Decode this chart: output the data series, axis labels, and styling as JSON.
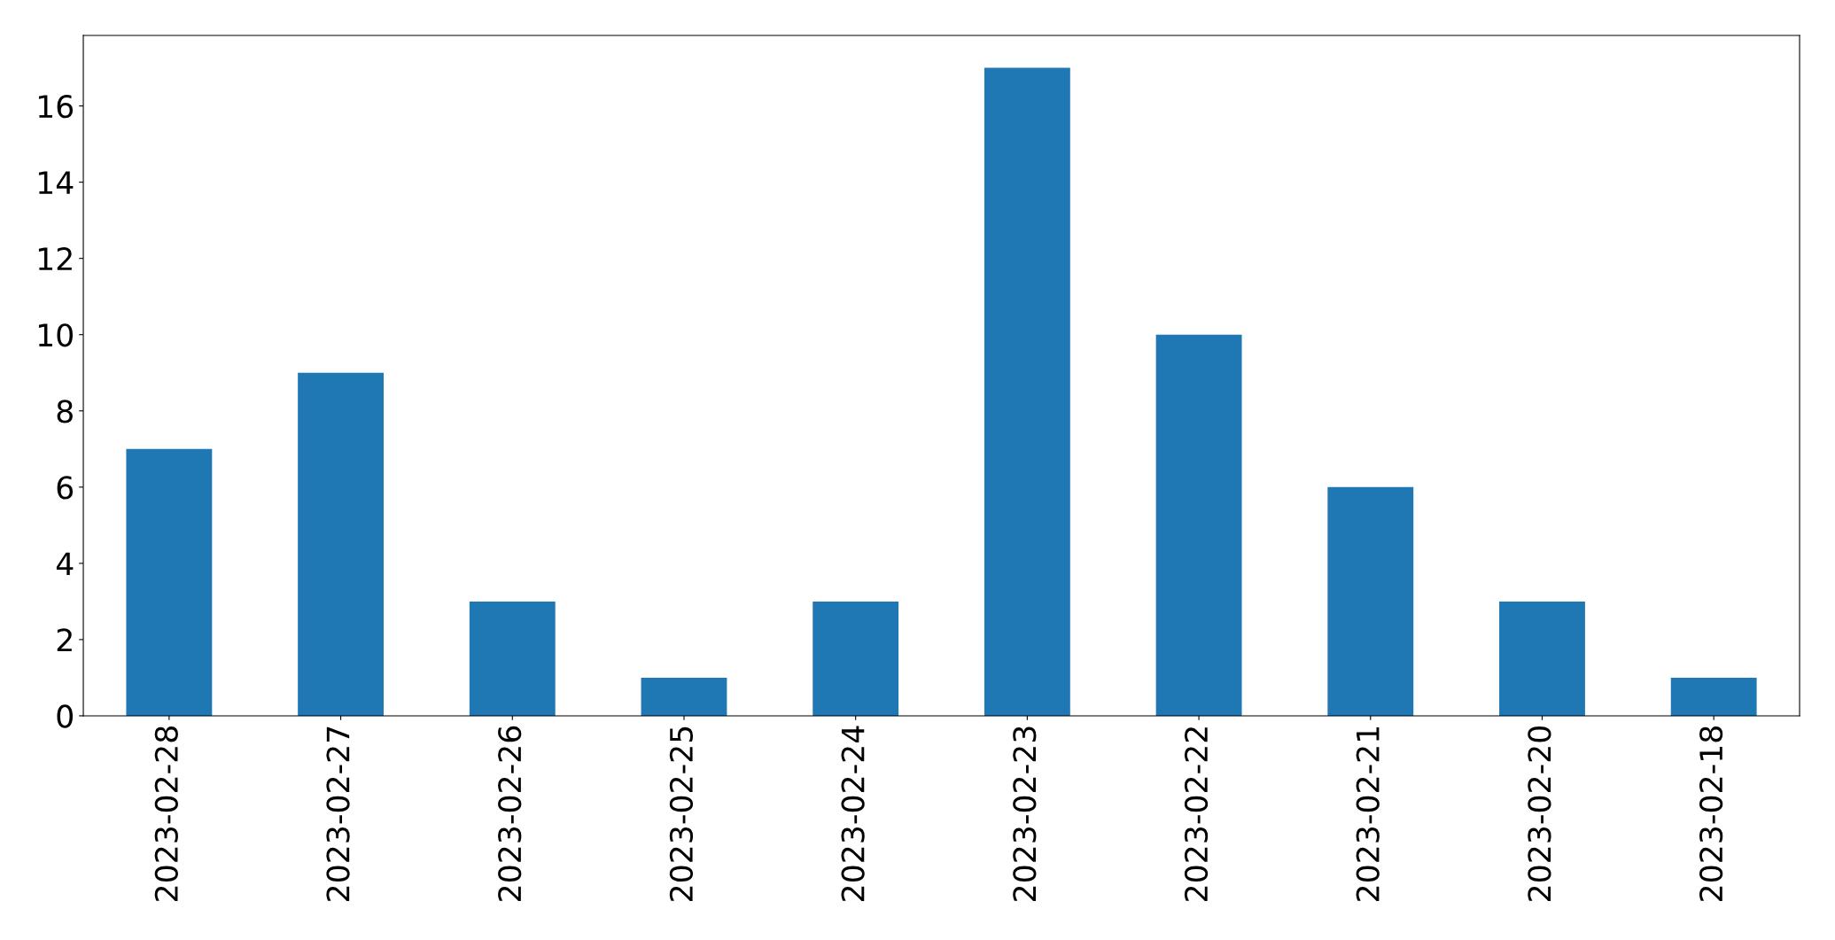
{
  "chart_data": {
    "type": "bar",
    "categories": [
      "2023-02-28",
      "2023-02-27",
      "2023-02-26",
      "2023-02-25",
      "2023-02-24",
      "2023-02-23",
      "2023-02-22",
      "2023-02-21",
      "2023-02-20",
      "2023-02-18"
    ],
    "values": [
      7,
      9,
      3,
      1,
      3,
      17,
      10,
      6,
      3,
      1
    ],
    "color": "#1f77b4",
    "ylim": [
      0,
      17.85
    ],
    "yticks": [
      0,
      2,
      4,
      6,
      8,
      10,
      12,
      14,
      16
    ],
    "grid": false,
    "legend": false
  }
}
